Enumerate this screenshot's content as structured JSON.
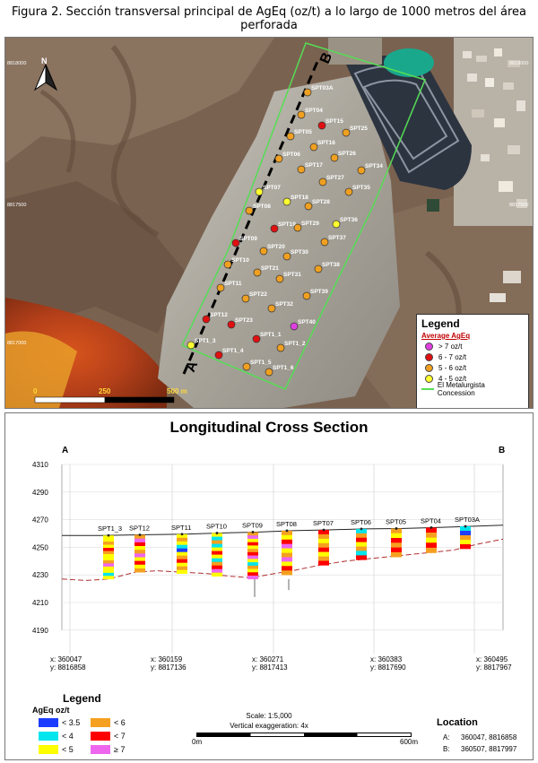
{
  "figure_title": "Figura 2. Sección transversal principal de AgEq (oz/t) a lo largo de 1000 metros del área perforada",
  "map": {
    "north_label": "N",
    "section_start_label": "A",
    "section_end_label": "B",
    "scale_labels": [
      "0",
      "250",
      "500 m"
    ],
    "coord_labels": [
      "8818000",
      "8817500",
      "8817000",
      "8818000",
      "8817500",
      "8817000"
    ],
    "legend": {
      "title": "Legend",
      "subtitle": "Average AgEq",
      "items": [
        {
          "label": "> 7 oz/t",
          "color": "#e040e0"
        },
        {
          "label": "6 - 7 oz/t",
          "color": "#e01010"
        },
        {
          "label": "5 - 6 oz/t",
          "color": "#f0a020"
        },
        {
          "label": "4 - 5 oz/t",
          "color": "#ffff30"
        }
      ],
      "concession_label": "El Metalurgista Concession",
      "concession_color": "#55dd55"
    },
    "holes": [
      {
        "name": "SPT03A",
        "class": 2
      },
      {
        "name": "SPT04",
        "class": 2
      },
      {
        "name": "SPT15",
        "class": 1
      },
      {
        "name": "SPT05",
        "class": 2
      },
      {
        "name": "SPT25",
        "class": 2
      },
      {
        "name": "SPT16",
        "class": 2
      },
      {
        "name": "SPT06",
        "class": 2
      },
      {
        "name": "SPT26",
        "class": 2
      },
      {
        "name": "SPT17",
        "class": 2
      },
      {
        "name": "SPT34",
        "class": 2
      },
      {
        "name": "SPT07",
        "class": 3
      },
      {
        "name": "SPT27",
        "class": 2
      },
      {
        "name": "SPT18",
        "class": 3
      },
      {
        "name": "SPT35",
        "class": 2
      },
      {
        "name": "SPT08",
        "class": 2
      },
      {
        "name": "SPT28",
        "class": 2
      },
      {
        "name": "SPT19",
        "class": 1
      },
      {
        "name": "SPT36",
        "class": 3
      },
      {
        "name": "SPT09",
        "class": 1
      },
      {
        "name": "SPT29",
        "class": 2
      },
      {
        "name": "SPT20",
        "class": 2
      },
      {
        "name": "SPT37",
        "class": 2
      },
      {
        "name": "SPT10",
        "class": 2
      },
      {
        "name": "SPT30",
        "class": 2
      },
      {
        "name": "SPT21",
        "class": 2
      },
      {
        "name": "SPT38",
        "class": 2
      },
      {
        "name": "SPT11",
        "class": 2
      },
      {
        "name": "SPT31",
        "class": 2
      },
      {
        "name": "SPT22",
        "class": 2
      },
      {
        "name": "SPT39",
        "class": 2
      },
      {
        "name": "SPT12",
        "class": 1
      },
      {
        "name": "SPT32",
        "class": 2
      },
      {
        "name": "SPT40",
        "class": 0
      },
      {
        "name": "SPT23",
        "class": 1
      },
      {
        "name": "SPT1_1",
        "class": 1
      },
      {
        "name": "SPT1_3",
        "class": 3
      },
      {
        "name": "SPT1_2",
        "class": 2
      },
      {
        "name": "SPT1_4",
        "class": 1
      },
      {
        "name": "SPT1_5",
        "class": 2
      },
      {
        "name": "SPT1_6",
        "class": 2
      }
    ]
  },
  "section": {
    "title": "Longitudinal Cross Section",
    "start_label": "A",
    "end_label": "B",
    "elevation_ticks": [
      4310,
      4290,
      4270,
      4250,
      4230,
      4210,
      4190
    ],
    "holes": [
      {
        "name": "SPT1_3"
      },
      {
        "name": "SPT12"
      },
      {
        "name": "SPT11"
      },
      {
        "name": "SPT10"
      },
      {
        "name": "SPT09"
      },
      {
        "name": "SPT08"
      },
      {
        "name": "SPT07"
      },
      {
        "name": "SPT06"
      },
      {
        "name": "SPT05"
      },
      {
        "name": "SPT04"
      },
      {
        "name": "SPT03A"
      }
    ],
    "bottom_coords": [
      {
        "x": "x: 360047",
        "y": "y: 8816858"
      },
      {
        "x": "x: 360159",
        "y": "y: 8817136"
      },
      {
        "x": "x: 360271",
        "y": "y: 8817413"
      },
      {
        "x": "x: 360383",
        "y": "y: 8817690"
      },
      {
        "x": "x: 360495",
        "y": "y: 8817967"
      }
    ],
    "legend": {
      "title": "Legend",
      "subtitle": "AgEq oz/t",
      "items": [
        {
          "label": "< 3.5",
          "color": "#1e3cff"
        },
        {
          "label": "< 4",
          "color": "#00e5ee"
        },
        {
          "label": "< 5",
          "color": "#ffff00"
        },
        {
          "label": "< 6",
          "color": "#f5a020"
        },
        {
          "label": "< 7",
          "color": "#ff0000"
        },
        {
          "label": "≥ 7",
          "color": "#ee66ee"
        }
      ]
    },
    "scale": {
      "text": "Scale: 1:5,000",
      "exaggeration": "Vertical exaggeration: 4x",
      "start": "0m",
      "end": "600m"
    },
    "location": {
      "title": "Location",
      "a_label": "A:",
      "a_coords": "360047, 8816858",
      "b_label": "B:",
      "b_coords": "360507, 8817997"
    }
  }
}
